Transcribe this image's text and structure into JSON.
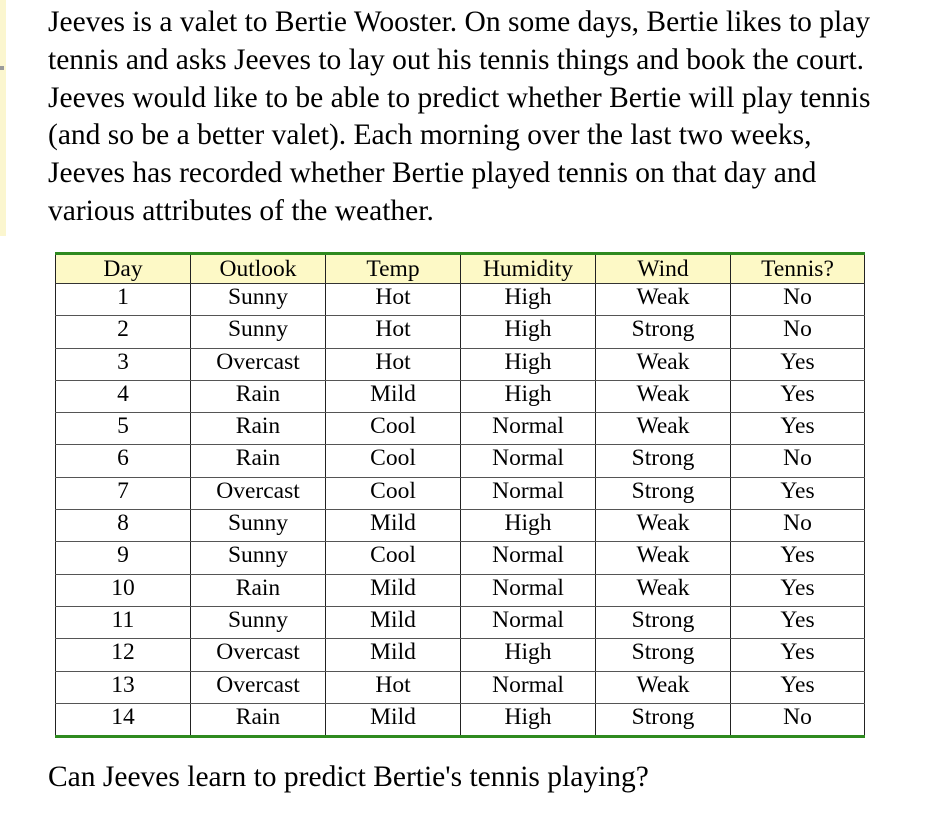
{
  "intro_text": "Jeeves is a valet to Bertie Wooster. On some days, Bertie likes to play tennis and asks Jeeves to lay out his tennis things and book the court. Jeeves would like to be able to predict whether Bertie will play tennis (and so be a better valet). Each morning over the last two weeks, Jeeves has recorded whether Bertie played tennis on that day and various attributes of the weather.",
  "table": {
    "headers": [
      "Day",
      "Outlook",
      "Temp",
      "Humidity",
      "Wind",
      "Tennis?"
    ],
    "rows": [
      [
        "1",
        "Sunny",
        "Hot",
        "High",
        "Weak",
        "No"
      ],
      [
        "2",
        "Sunny",
        "Hot",
        "High",
        "Strong",
        "No"
      ],
      [
        "3",
        "Overcast",
        "Hot",
        "High",
        "Weak",
        "Yes"
      ],
      [
        "4",
        "Rain",
        "Mild",
        "High",
        "Weak",
        "Yes"
      ],
      [
        "5",
        "Rain",
        "Cool",
        "Normal",
        "Weak",
        "Yes"
      ],
      [
        "6",
        "Rain",
        "Cool",
        "Normal",
        "Strong",
        "No"
      ],
      [
        "7",
        "Overcast",
        "Cool",
        "Normal",
        "Strong",
        "Yes"
      ],
      [
        "8",
        "Sunny",
        "Mild",
        "High",
        "Weak",
        "No"
      ],
      [
        "9",
        "Sunny",
        "Cool",
        "Normal",
        "Weak",
        "Yes"
      ],
      [
        "10",
        "Rain",
        "Mild",
        "Normal",
        "Weak",
        "Yes"
      ],
      [
        "11",
        "Sunny",
        "Mild",
        "Normal",
        "Strong",
        "Yes"
      ],
      [
        "12",
        "Overcast",
        "Mild",
        "High",
        "Strong",
        "Yes"
      ],
      [
        "13",
        "Overcast",
        "Hot",
        "Normal",
        "Weak",
        "Yes"
      ],
      [
        "14",
        "Rain",
        "Mild",
        "High",
        "Strong",
        "No"
      ]
    ]
  },
  "question_text": "Can Jeeves learn to predict Bertie's tennis playing?",
  "colors": {
    "header_background": "#fdf9c6",
    "table_rule": "#2e8a1f",
    "margin_bar": "#fbf6cf"
  }
}
